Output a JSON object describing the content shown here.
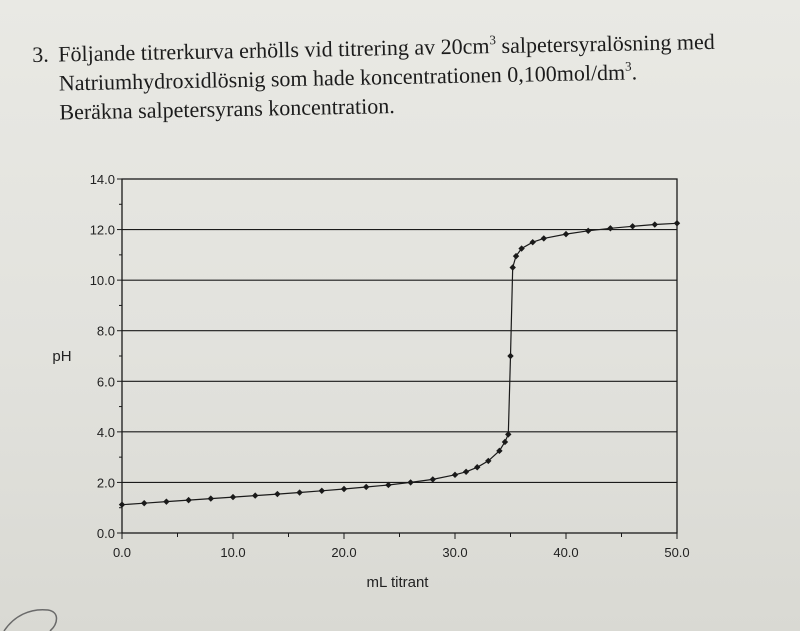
{
  "question": {
    "number": "3.",
    "line1_text": "Följande titrerkurva erhölls vid titrering av 20cm",
    "line1_sup": "3",
    "line1_rest": " salpetersyralösning med",
    "line2_text": "Natriumhydroxidlösnig som hade koncentrationen 0,100mol/dm",
    "line2_sup": "3",
    "line2_rest": ".",
    "line3_text": "Beräkna salpetersyrans koncentration."
  },
  "chart_data": {
    "type": "scatter",
    "title": "",
    "xlabel": "mL titrant",
    "ylabel": "pH",
    "xlim": [
      0,
      50
    ],
    "ylim": [
      0,
      14
    ],
    "x_ticks": [
      0,
      10,
      20,
      30,
      40,
      50
    ],
    "x_tick_labels": [
      "0.0",
      "10.0",
      "20.0",
      "30.0",
      "40.0",
      "50.0"
    ],
    "y_ticks": [
      0,
      2,
      4,
      6,
      8,
      10,
      12,
      14
    ],
    "y_tick_labels": [
      "0.0",
      "2.0",
      "4.0",
      "6.0",
      "8.0",
      "10.0",
      "12.0",
      "14.0"
    ],
    "grid": "horizontal",
    "legend": "none",
    "series": [
      {
        "marker": "diamond",
        "color": "#1a1a1a",
        "x": [
          0,
          2,
          4,
          6,
          8,
          10,
          12,
          14,
          16,
          18,
          20,
          22,
          24,
          26,
          28,
          30,
          31,
          32,
          33,
          34,
          34.5,
          34.8,
          35.0,
          35.2,
          35.5,
          36,
          37,
          38,
          40,
          42,
          44,
          46,
          48,
          50
        ],
        "y": [
          1.12,
          1.18,
          1.24,
          1.3,
          1.36,
          1.42,
          1.48,
          1.54,
          1.6,
          1.67,
          1.74,
          1.82,
          1.9,
          2.0,
          2.12,
          2.3,
          2.42,
          2.6,
          2.85,
          3.25,
          3.6,
          3.9,
          7.0,
          10.5,
          10.95,
          11.25,
          11.5,
          11.65,
          11.82,
          11.95,
          12.05,
          12.13,
          12.2,
          12.25
        ]
      }
    ]
  }
}
